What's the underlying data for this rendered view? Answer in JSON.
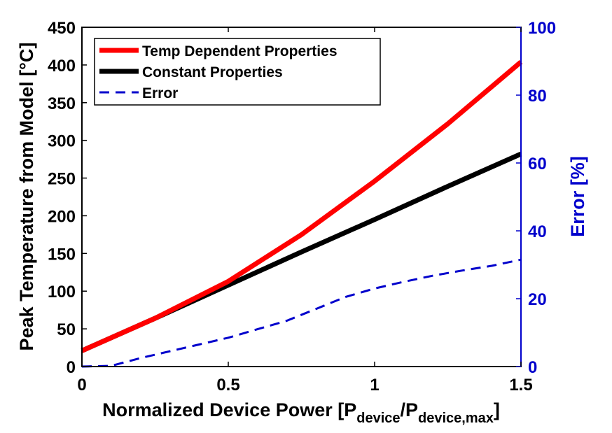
{
  "chart_data": {
    "type": "line",
    "xlabel": {
      "main": "Normalized Device Power [P",
      "sub1": "device",
      "mid": "/P",
      "sub2": "device,max",
      "end": "]"
    },
    "ylabel": "Peak Temperature from Model [°C]",
    "ylabel_right": "Error [%]",
    "xlim": [
      0,
      1.5
    ],
    "ylim": [
      0,
      450
    ],
    "ylim_right": [
      0,
      100
    ],
    "xticks": [
      "0",
      "0.5",
      "1",
      "1.5"
    ],
    "yticks": [
      "0",
      "50",
      "100",
      "150",
      "200",
      "250",
      "300",
      "350",
      "400",
      "450"
    ],
    "yticks_right": [
      "0",
      "20",
      "40",
      "60",
      "80",
      "100"
    ],
    "legend_position": "top-left",
    "grid": false,
    "series": [
      {
        "name": "Temp Dependent Properties",
        "color": "#ff0000",
        "style": "solid",
        "axis": "left",
        "x": [
          0,
          0.25,
          0.5,
          0.75,
          1.0,
          1.25,
          1.5
        ],
        "y": [
          21,
          64,
          113,
          175,
          246,
          322,
          404
        ]
      },
      {
        "name": "Constant Properties",
        "color": "#000000",
        "style": "solid",
        "axis": "left",
        "x": [
          0,
          0.25,
          0.5,
          0.75,
          1.0,
          1.25,
          1.5
        ],
        "y": [
          21,
          64,
          108,
          152,
          195,
          239,
          282
        ]
      },
      {
        "name": "Error",
        "color": "#0000cc",
        "style": "dashed",
        "axis": "right",
        "x": [
          0,
          0.1,
          0.2,
          0.3,
          0.4,
          0.5,
          0.6,
          0.7,
          0.8,
          0.9,
          1.0,
          1.1,
          1.2,
          1.3,
          1.4,
          1.5
        ],
        "y": [
          0,
          0.2,
          2.5,
          4.5,
          6.5,
          8.5,
          11,
          13.5,
          17,
          20.5,
          23,
          25,
          26.8,
          28.3,
          29.7,
          31.5
        ]
      }
    ]
  }
}
